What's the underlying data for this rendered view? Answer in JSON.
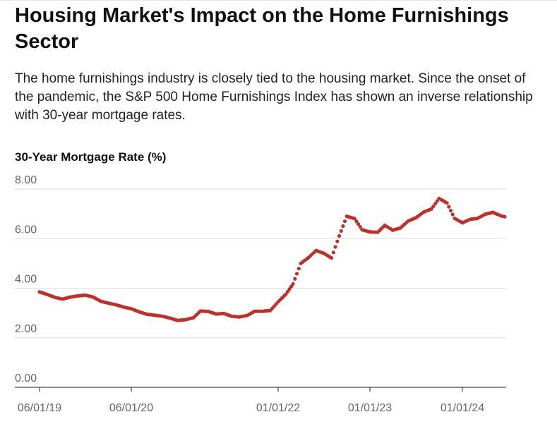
{
  "title": "Housing Market's Impact on the Home Furnishings Sector",
  "subtitle": "The home furnishings industry is closely tied to the housing market. Since the onset of the pandemic, the S&P 500 Home Furnishings Index has shown an inverse relationship with 30-year mortgage rates.",
  "chart_data": {
    "type": "scatter",
    "title": "Housing Market's Impact on the Home Furnishings Sector",
    "ylabel": "30-Year Mortgage Rate (%)",
    "xlabel": "",
    "ylim": [
      0,
      8
    ],
    "xlim": [
      "2019-06-01",
      "2024-07-15"
    ],
    "grid": "horizontal",
    "legend": "none",
    "y_ticks": [
      "0.00",
      "2.00",
      "4.00",
      "6.00",
      "8.00"
    ],
    "x_ticks": [
      {
        "date": "2019-06-01",
        "label": "06/01/19"
      },
      {
        "date": "2020-06-01",
        "label": "06/01/20"
      },
      {
        "date": "2022-01-01",
        "label": "01/01/22"
      },
      {
        "date": "2023-01-01",
        "label": "01/01/23"
      },
      {
        "date": "2024-01-01",
        "label": "01/01/24"
      }
    ],
    "colors": {
      "marker": "#c0302a",
      "grid": "#dddddd",
      "axis": "#444444"
    },
    "series": [
      {
        "points": [
          [
            "2019-06-01",
            3.85
          ],
          [
            "2019-07-01",
            3.75
          ],
          [
            "2019-08-01",
            3.63
          ],
          [
            "2019-09-01",
            3.56
          ],
          [
            "2019-10-01",
            3.64
          ],
          [
            "2019-11-01",
            3.69
          ],
          [
            "2019-12-01",
            3.72
          ],
          [
            "2020-01-01",
            3.64
          ],
          [
            "2020-02-01",
            3.47
          ],
          [
            "2020-03-01",
            3.4
          ],
          [
            "2020-04-01",
            3.33
          ],
          [
            "2020-05-01",
            3.24
          ],
          [
            "2020-06-01",
            3.17
          ],
          [
            "2020-07-01",
            3.05
          ],
          [
            "2020-08-01",
            2.95
          ],
          [
            "2020-09-01",
            2.91
          ],
          [
            "2020-10-01",
            2.87
          ],
          [
            "2020-11-01",
            2.79
          ],
          [
            "2020-12-01",
            2.7
          ],
          [
            "2021-01-01",
            2.73
          ],
          [
            "2021-02-01",
            2.81
          ],
          [
            "2021-03-01",
            3.08
          ],
          [
            "2021-04-01",
            3.06
          ],
          [
            "2021-05-01",
            2.96
          ],
          [
            "2021-06-01",
            2.98
          ],
          [
            "2021-07-01",
            2.87
          ],
          [
            "2021-08-01",
            2.84
          ],
          [
            "2021-09-01",
            2.9
          ],
          [
            "2021-10-01",
            3.07
          ],
          [
            "2021-11-01",
            3.07
          ],
          [
            "2021-12-01",
            3.1
          ],
          [
            "2022-01-01",
            3.45
          ],
          [
            "2022-02-01",
            3.76
          ],
          [
            "2022-03-01",
            4.17
          ],
          [
            "2022-04-01",
            5.0
          ],
          [
            "2022-05-01",
            5.23
          ],
          [
            "2022-06-01",
            5.52
          ],
          [
            "2022-07-01",
            5.41
          ],
          [
            "2022-08-01",
            5.22
          ],
          [
            "2022-09-01",
            6.11
          ],
          [
            "2022-10-01",
            6.9
          ],
          [
            "2022-11-01",
            6.81
          ],
          [
            "2022-12-01",
            6.36
          ],
          [
            "2023-01-01",
            6.27
          ],
          [
            "2023-02-01",
            6.26
          ],
          [
            "2023-03-01",
            6.54
          ],
          [
            "2023-04-01",
            6.34
          ],
          [
            "2023-05-01",
            6.43
          ],
          [
            "2023-06-01",
            6.71
          ],
          [
            "2023-07-01",
            6.84
          ],
          [
            "2023-08-01",
            7.07
          ],
          [
            "2023-09-01",
            7.2
          ],
          [
            "2023-10-01",
            7.62
          ],
          [
            "2023-11-01",
            7.44
          ],
          [
            "2023-12-01",
            6.82
          ],
          [
            "2024-01-01",
            6.64
          ],
          [
            "2024-02-01",
            6.78
          ],
          [
            "2024-03-01",
            6.82
          ],
          [
            "2024-04-01",
            6.99
          ],
          [
            "2024-05-01",
            7.06
          ],
          [
            "2024-06-01",
            6.92
          ],
          [
            "2024-07-01",
            6.85
          ]
        ]
      }
    ]
  }
}
